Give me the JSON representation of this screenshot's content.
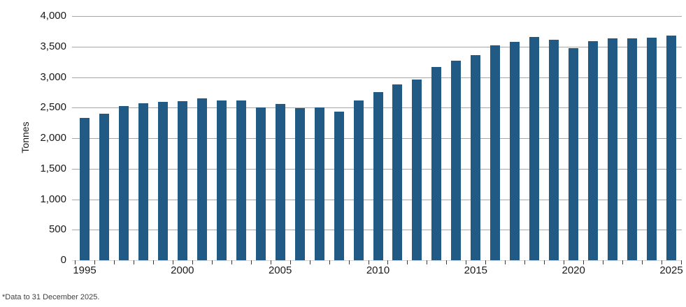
{
  "chart_data": {
    "type": "bar",
    "title": "",
    "xlabel": "",
    "ylabel": "Tonnes",
    "ylim": [
      0,
      4000
    ],
    "ytick_interval": 500,
    "ytick_values": [
      0,
      500,
      1000,
      1500,
      2000,
      2500,
      3000,
      3500,
      4000
    ],
    "ytick_labels": [
      "0",
      "500",
      "1,000",
      "1,500",
      "2,000",
      "2,500",
      "3,000",
      "3,500",
      "4,000"
    ],
    "grid": "horizontal-only",
    "legend": "none",
    "bar_color": "#215a85",
    "x": [
      1995,
      1996,
      1997,
      1998,
      1999,
      2000,
      2001,
      2002,
      2003,
      2004,
      2005,
      2006,
      2007,
      2008,
      2009,
      2010,
      2011,
      2012,
      2013,
      2014,
      2015,
      2016,
      2017,
      2018,
      2019,
      2020,
      2021,
      2022,
      2023,
      2024,
      2025
    ],
    "values": [
      2330,
      2400,
      2530,
      2570,
      2600,
      2610,
      2650,
      2620,
      2620,
      2500,
      2560,
      2490,
      2500,
      2430,
      2620,
      2750,
      2880,
      2960,
      3170,
      3270,
      3360,
      3520,
      3580,
      3660,
      3610,
      3480,
      3590,
      3640,
      3640,
      3650,
      3680
    ],
    "x_axis_labels": [
      "1995",
      "2000",
      "2005",
      "2010",
      "2015",
      "2020",
      "2025"
    ]
  },
  "footnote": {
    "text": "*Data to 31 December 2025."
  },
  "colors": {
    "bar": "#215a85",
    "gridline": "#a6a6a6",
    "axis_line": "#d6d6d6",
    "tick": "#3a3a3a",
    "axis_text": "#1a1a1a",
    "footnote_text": "#404040"
  }
}
